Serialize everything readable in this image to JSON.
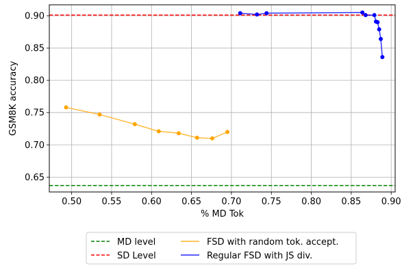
{
  "chart_data": {
    "type": "line",
    "title": "",
    "xlabel": "% MD Tok",
    "ylabel": "GSM8K accuracy",
    "xlim": [
      0.472,
      0.905
    ],
    "ylim": [
      0.627,
      0.917
    ],
    "xticks": [
      0.5,
      0.55,
      0.6,
      0.65,
      0.7,
      0.75,
      0.8,
      0.85,
      0.9
    ],
    "xtick_labels": [
      "0.50",
      "0.55",
      "0.60",
      "0.65",
      "0.70",
      "0.75",
      "0.80",
      "0.85",
      "0.90"
    ],
    "yticks": [
      0.65,
      0.7,
      0.75,
      0.8,
      0.85,
      0.9
    ],
    "ytick_labels": [
      "0.65",
      "0.70",
      "0.75",
      "0.80",
      "0.85",
      "0.90"
    ],
    "grid": true,
    "legend_placement": "below",
    "reference_lines": [
      {
        "name": "MD level",
        "y": 0.637,
        "color": "#008000",
        "style": "dashed"
      },
      {
        "name": "SD Level",
        "y": 0.901,
        "color": "#ff0000",
        "style": "dashed"
      }
    ],
    "series": [
      {
        "name": "FSD with random tok. accept.",
        "color": "#ffa500",
        "x": [
          0.493,
          0.535,
          0.579,
          0.609,
          0.634,
          0.657,
          0.676,
          0.695
        ],
        "y": [
          0.758,
          0.747,
          0.732,
          0.721,
          0.718,
          0.711,
          0.71,
          0.72
        ]
      },
      {
        "name": "Regular FSD with JS div.",
        "color": "#0000ff",
        "x": [
          0.711,
          0.732,
          0.744,
          0.864,
          0.868,
          0.879,
          0.881,
          0.883,
          0.885,
          0.887,
          0.889
        ],
        "y": [
          0.904,
          0.902,
          0.904,
          0.905,
          0.901,
          0.901,
          0.891,
          0.89,
          0.879,
          0.864,
          0.836
        ]
      }
    ]
  }
}
